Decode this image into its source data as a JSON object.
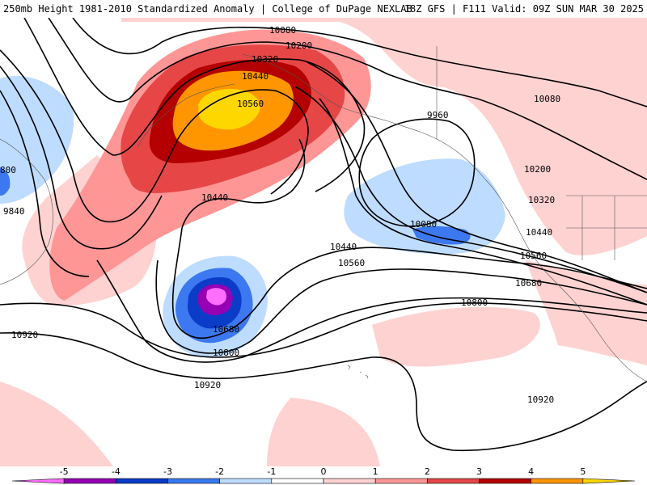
{
  "header": {
    "title_left": "250mb Height 1981-2010 Standardized Anomaly | College of DuPage NEXLAB",
    "title_right": "18Z GFS | F111 Valid: 09Z SUN MAR 30 2025"
  },
  "contour_labels": [
    "10080",
    "10200",
    "10320",
    "10440",
    "10560",
    "9960",
    "10080",
    "10200",
    "10320",
    "10440",
    "10560",
    "10680",
    "10800",
    "10920",
    "9840",
    "10440",
    "10440",
    "10560",
    "10680",
    "10800",
    "10920",
    "10920",
    "10680",
    "10800",
    "10080",
    "9960",
    "800"
  ],
  "colorbar": {
    "tick_labels": [
      "-5",
      "-4",
      "-3",
      "-2",
      "-1",
      "0",
      "1",
      "2",
      "3",
      "4",
      "5"
    ],
    "colors": [
      "#ff6eff",
      "#9600b4",
      "#0a3cc8",
      "#3c78f0",
      "#bedcff",
      "#ffffff",
      "#ffd2d2",
      "#ff9696",
      "#e64646",
      "#b40000",
      "#ff9600",
      "#ffd700"
    ]
  }
}
